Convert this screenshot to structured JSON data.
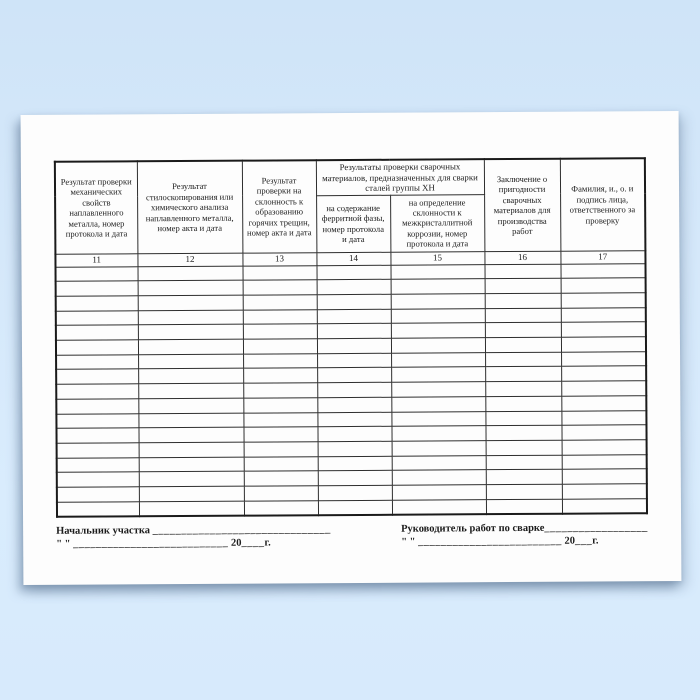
{
  "background": {
    "sky_top": "#cfe4f8",
    "sky_bottom": "#d9ecfd",
    "paper": "#fdfdfd",
    "border_color": "#1a1a1a"
  },
  "table": {
    "group_header": "Результаты проверки сварочных материалов, предназначенных для сварки сталей группы ХН",
    "columns": [
      {
        "num": "11",
        "header": "Результат проверки механических свойств наплавленного металла, номер протокола и дата"
      },
      {
        "num": "12",
        "header": "Результат стилоскопирования или химического анализа наплавленного металла, номер акта и дата"
      },
      {
        "num": "13",
        "header": "Результат проверки на склонность к образованию горячих трещин, номер акта и дата"
      },
      {
        "num": "14",
        "header": "на содержание ферритной фазы, номер протокола и дата"
      },
      {
        "num": "15",
        "header": "на определение склонности к межкристаллитной коррозии, номер протокола и дата"
      },
      {
        "num": "16",
        "header": "Заключение о пригодности сварочных материалов для производства работ"
      },
      {
        "num": "17",
        "header": "Фамилия, и., о. и подпись лица, ответственного за проверку"
      }
    ],
    "empty_rows": 17
  },
  "footer": {
    "left": {
      "line1_label": "Начальник участка",
      "line1_blank": "_______________________________",
      "line2_quotes": "\"  \"",
      "line2_blank": "___________________________",
      "line2_year": "20",
      "line2_year_blank": "____",
      "line2_suffix": "г."
    },
    "right": {
      "line1_label": "Руководитель работ по сварке",
      "line1_blank": "__________________",
      "line2_quotes": "\"  \"",
      "line2_blank": "_________________________",
      "line2_year": "20",
      "line2_year_blank": "___",
      "line2_suffix": "г."
    }
  }
}
